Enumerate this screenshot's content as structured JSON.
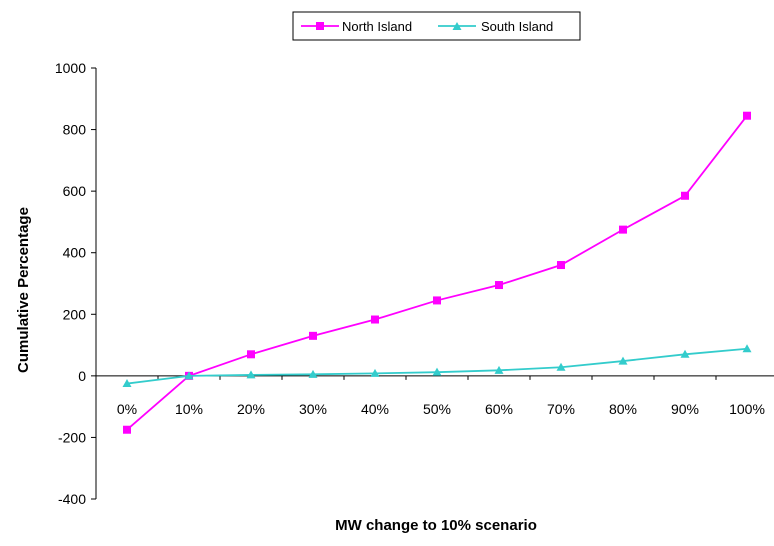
{
  "chart_data": {
    "type": "line",
    "title": "",
    "xlabel": "MW change to 10% scenario",
    "ylabel": "Cumulative Percentage",
    "categories": [
      "0%",
      "10%",
      "20%",
      "30%",
      "40%",
      "50%",
      "60%",
      "70%",
      "80%",
      "90%",
      "100%"
    ],
    "ylim": [
      -400,
      1000
    ],
    "yticks": [
      -400,
      -200,
      0,
      200,
      400,
      600,
      800,
      1000
    ],
    "grid": false,
    "legend_position": "top",
    "series": [
      {
        "name": "North Island",
        "color": "#ff00ff",
        "marker": "square",
        "values": [
          -175,
          0,
          70,
          130,
          183,
          245,
          295,
          360,
          475,
          585,
          845
        ]
      },
      {
        "name": "South Island",
        "color": "#33cccc",
        "marker": "triangle",
        "values": [
          -25,
          0,
          3,
          5,
          8,
          12,
          18,
          28,
          48,
          70,
          88
        ]
      }
    ]
  }
}
